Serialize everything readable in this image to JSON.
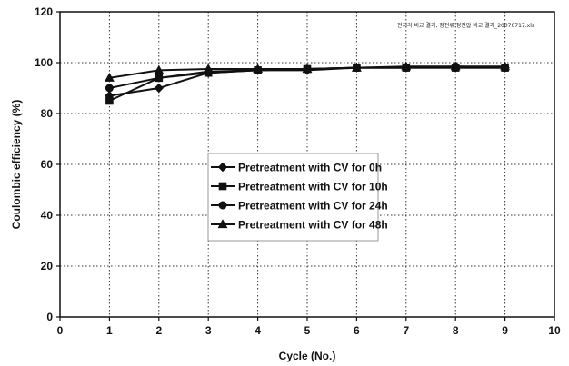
{
  "chart_data": {
    "type": "line",
    "title": "",
    "annotation": "전처리 비교 결과, 정전류 정전압 비교 결과_20070717.xls",
    "xlabel": "Cycle (No.)",
    "ylabel": "Coulombic efficiency (%)",
    "xlim": [
      0,
      10
    ],
    "ylim": [
      0,
      120
    ],
    "xticks": [
      0,
      1,
      2,
      3,
      4,
      5,
      6,
      7,
      8,
      9,
      10
    ],
    "yticks": [
      0,
      20,
      40,
      60,
      80,
      100,
      120
    ],
    "grid": true,
    "legend_position": "center",
    "x": [
      1,
      2,
      3,
      4,
      5,
      6,
      7,
      8,
      9
    ],
    "series": [
      {
        "name": "Pretreatment with CV for 0h",
        "marker": "diamond",
        "values": [
          87,
          90,
          96,
          97,
          97,
          98,
          98,
          98,
          98
        ]
      },
      {
        "name": "Pretreatment with CV for 10h",
        "marker": "square",
        "values": [
          85,
          94,
          96,
          97,
          97.5,
          98,
          98,
          98,
          98
        ]
      },
      {
        "name": "Pretreatment with CV for 24h",
        "marker": "circle",
        "values": [
          90,
          94,
          96.5,
          97,
          97.5,
          98,
          98,
          98.5,
          98
        ]
      },
      {
        "name": "Pretreatment with CV for 48h",
        "marker": "triangle",
        "values": [
          94,
          97,
          97.5,
          97.5,
          97.5,
          98,
          98.5,
          98.5,
          98.5
        ]
      }
    ]
  }
}
